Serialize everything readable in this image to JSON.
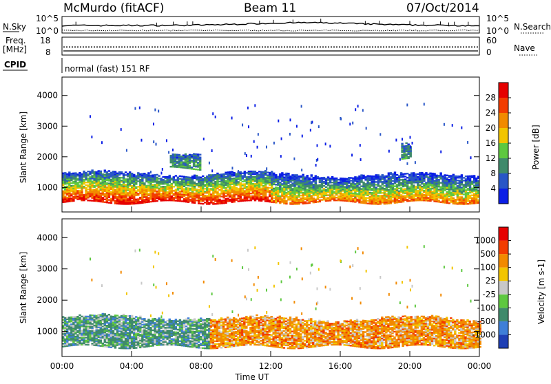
{
  "header": {
    "site": "McMurdo (fitACF)",
    "beam": "Beam 11",
    "date": "07/Oct/2014"
  },
  "noise_panel": {
    "left_label": "N.Sky",
    "right_label": "N.Search",
    "left_ticks": [
      "10^5",
      "10^0"
    ],
    "right_ticks": [
      "10^5",
      "10^0"
    ]
  },
  "freq_panel": {
    "left_label_1": "Freq.",
    "left_label_2": "[MHz]",
    "left_ticks": [
      "18",
      "8"
    ],
    "right_label": "Nave",
    "right_ticks": [
      "60",
      "0"
    ],
    "freq_value_mhz": 12.5
  },
  "cpid_panel": {
    "label": "CPID",
    "text": "normal (fast) 151 RF"
  },
  "chart_data": [
    {
      "type": "heatmap",
      "name": "power-panel",
      "xlabel": "",
      "ylabel": "Slant Range [km]",
      "x_range_hours": [
        0,
        24
      ],
      "ylim": [
        200,
        4600
      ],
      "yticks": [
        "1000",
        "2000",
        "3000",
        "4000"
      ],
      "colorbar": {
        "label": "Power [dB]",
        "ticks": [
          "4",
          "8",
          "12",
          "16",
          "20",
          "24",
          "28"
        ],
        "range": [
          0,
          32
        ],
        "colors": [
          "#0b1ee6",
          "#2956c7",
          "#3f8a6b",
          "#5ec840",
          "#f2c500",
          "#f28a00",
          "#f23c00",
          "#e60000"
        ]
      },
      "regions": [
        {
          "t": [
            0,
            12
          ],
          "r": [
            500,
            1400
          ],
          "level": "high"
        },
        {
          "t": [
            12,
            24
          ],
          "r": [
            500,
            1350
          ],
          "level": "mid"
        },
        {
          "t": [
            6.2,
            8.0
          ],
          "r": [
            1600,
            2100
          ],
          "level": "low"
        },
        {
          "t": [
            19.5,
            20.1
          ],
          "r": [
            1900,
            2300
          ],
          "level": "low"
        }
      ]
    },
    {
      "type": "heatmap",
      "name": "velocity-panel",
      "xlabel": "Time UT",
      "ylabel": "Slant Range [km]",
      "x_range_hours": [
        0,
        24
      ],
      "xticks": [
        "00:00",
        "04:00",
        "08:00",
        "12:00",
        "16:00",
        "20:00",
        "00:00"
      ],
      "ylim": [
        200,
        4600
      ],
      "yticks": [
        "1000",
        "2000",
        "3000",
        "4000"
      ],
      "colorbar": {
        "label": "Velocity [m s-1]",
        "ticks": [
          "1000",
          "500",
          "100",
          "25",
          "-25",
          "-100",
          "-500",
          "-1000"
        ],
        "colors": [
          "#1f3fb4",
          "#3f7fd8",
          "#3f8a6b",
          "#5ec840",
          "#c8c8c8",
          "#f2c500",
          "#f28a00",
          "#f23c00",
          "#e60000"
        ]
      },
      "regions": [
        {
          "t": [
            0,
            8.5
          ],
          "r": [
            500,
            1400
          ],
          "sign": "positive"
        },
        {
          "t": [
            8.5,
            24
          ],
          "r": [
            500,
            1350
          ],
          "sign": "negative"
        }
      ]
    }
  ]
}
